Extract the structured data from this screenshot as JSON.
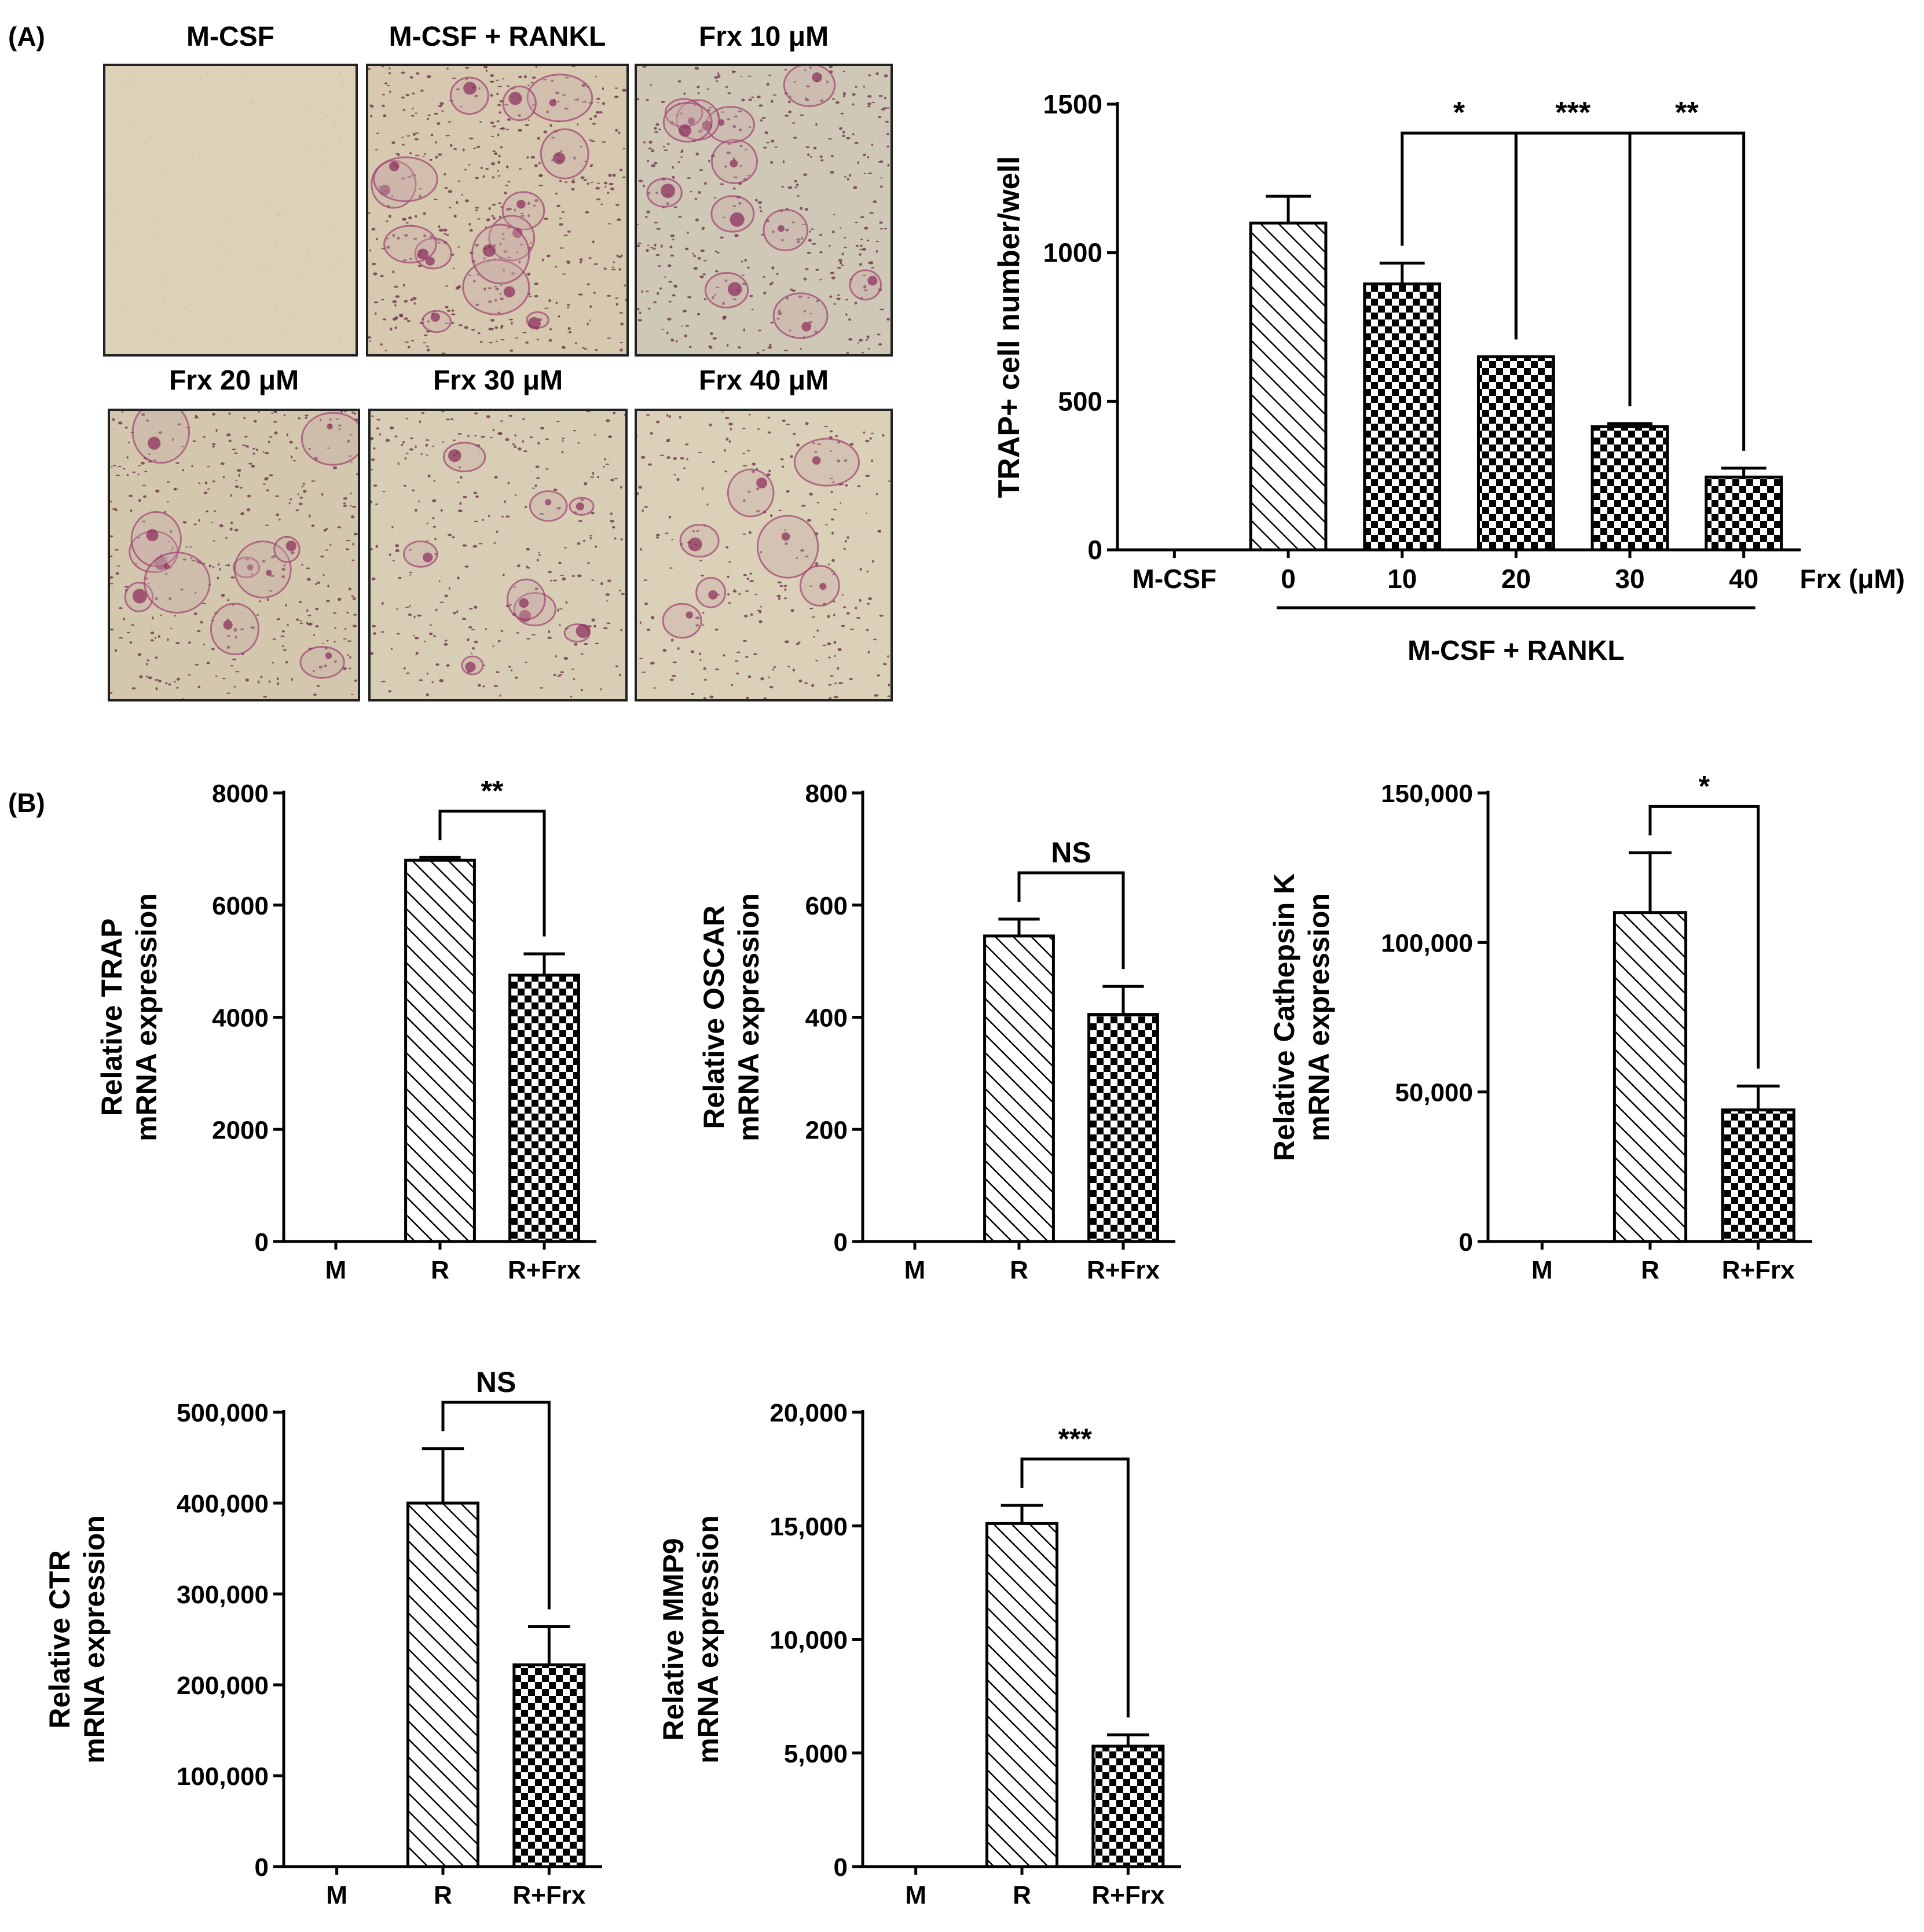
{
  "panels": {
    "a_label": "(A)",
    "b_label": "(B)"
  },
  "micrographs": [
    {
      "title": "M-CSF",
      "bg": "#ddd2b8",
      "stain": 0
    },
    {
      "title": "M-CSF + RANKL",
      "bg": "#d6c9b0",
      "stain": 1
    },
    {
      "title": "Frx 10 μM",
      "bg": "#cfc8b6",
      "stain": 0.85
    },
    {
      "title": "Frx 20 μM",
      "bg": "#d3c8ae",
      "stain": 0.75
    },
    {
      "title": "Frx 30 μM",
      "bg": "#d8ceb5",
      "stain": 0.55
    },
    {
      "title": "Frx 40 μM",
      "bg": "#dbd1b8",
      "stain": 0.5
    }
  ],
  "chart_data": [
    {
      "id": "trap-count",
      "type": "bar",
      "ylabel": "TRAP+ cell number/well",
      "ylim": [
        0,
        1500
      ],
      "yticks": [
        "0",
        "500",
        "1000",
        "1500"
      ],
      "ytick_values": [
        0,
        500,
        1000,
        1500
      ],
      "categories": [
        "M-CSF",
        "0",
        "10",
        "20",
        "30",
        "40"
      ],
      "values": [
        0,
        1100,
        895,
        650,
        415,
        245
      ],
      "errors": [
        0,
        90,
        70,
        0,
        10,
        30
      ],
      "patterns": [
        "none",
        "hatch",
        "check",
        "check",
        "check",
        "check"
      ],
      "unit_label": "Frx (μM)",
      "group_label": "M-CSF  + RANKL",
      "significance": [
        {
          "label": "*",
          "from": 2,
          "to": 3
        },
        {
          "label": "***",
          "from": 3,
          "to": 4
        },
        {
          "label": "**",
          "from": 4,
          "to": 5
        }
      ]
    },
    {
      "id": "trap-mrna",
      "type": "bar",
      "ylabel_lines": [
        "Relative TRAP",
        "mRNA expression"
      ],
      "ylim": [
        0,
        8000
      ],
      "yticks": [
        "0",
        "2000",
        "4000",
        "6000",
        "8000"
      ],
      "ytick_values": [
        0,
        2000,
        4000,
        6000,
        8000
      ],
      "categories": [
        "M",
        "R",
        "R+Frx"
      ],
      "values": [
        0,
        6800,
        4750
      ],
      "errors": [
        0,
        50,
        380
      ],
      "patterns": [
        "none",
        "hatch",
        "check"
      ],
      "significance": [
        {
          "label": "**",
          "from": 1,
          "to": 2
        }
      ]
    },
    {
      "id": "oscar-mrna",
      "type": "bar",
      "ylabel_lines": [
        "Relative OSCAR",
        "mRNA expression"
      ],
      "ylim": [
        0,
        800
      ],
      "yticks": [
        "0",
        "200",
        "400",
        "600",
        "800"
      ],
      "ytick_values": [
        0,
        200,
        400,
        600,
        800
      ],
      "categories": [
        "M",
        "R",
        "R+Frx"
      ],
      "values": [
        0,
        545,
        405
      ],
      "errors": [
        0,
        30,
        50
      ],
      "patterns": [
        "none",
        "hatch",
        "check"
      ],
      "significance": [
        {
          "label": "NS",
          "from": 1,
          "to": 2
        }
      ]
    },
    {
      "id": "ctsk-mrna",
      "type": "bar",
      "ylabel_lines": [
        "Relative Cathepsin K",
        "mRNA expression"
      ],
      "ylim": [
        0,
        150000
      ],
      "yticks": [
        "0",
        "50,000",
        "100,000",
        "150,000"
      ],
      "ytick_values": [
        0,
        50000,
        100000,
        150000
      ],
      "categories": [
        "M",
        "R",
        "R+Frx"
      ],
      "values": [
        0,
        110000,
        44000
      ],
      "errors": [
        0,
        20000,
        8000
      ],
      "patterns": [
        "none",
        "hatch",
        "check"
      ],
      "significance": [
        {
          "label": "*",
          "from": 1,
          "to": 2
        }
      ]
    },
    {
      "id": "ctr-mrna",
      "type": "bar",
      "ylabel_lines": [
        "Relative CTR",
        "mRNA expression"
      ],
      "ylim": [
        0,
        500000
      ],
      "yticks": [
        "0",
        "100,000",
        "200,000",
        "300,000",
        "400,000",
        "500,000"
      ],
      "ytick_values": [
        0,
        100000,
        200000,
        300000,
        400000,
        500000
      ],
      "categories": [
        "M",
        "R",
        "R+Frx"
      ],
      "values": [
        0,
        400000,
        222000
      ],
      "errors": [
        0,
        60000,
        42000
      ],
      "patterns": [
        "none",
        "hatch",
        "check"
      ],
      "significance": [
        {
          "label": "NS",
          "from": 1,
          "to": 2
        }
      ]
    },
    {
      "id": "mmp9-mrna",
      "type": "bar",
      "ylabel_lines": [
        "Relative MMP9",
        "mRNA expression"
      ],
      "ylim": [
        0,
        20000
      ],
      "yticks": [
        "0",
        "5,000",
        "10,000",
        "15,000",
        "20,000"
      ],
      "ytick_values": [
        0,
        5000,
        10000,
        15000,
        20000
      ],
      "categories": [
        "M",
        "R",
        "R+Frx"
      ],
      "values": [
        0,
        15100,
        5300
      ],
      "errors": [
        0,
        800,
        500
      ],
      "patterns": [
        "none",
        "hatch",
        "check"
      ],
      "significance": [
        {
          "label": "***",
          "from": 1,
          "to": 2
        }
      ]
    }
  ]
}
